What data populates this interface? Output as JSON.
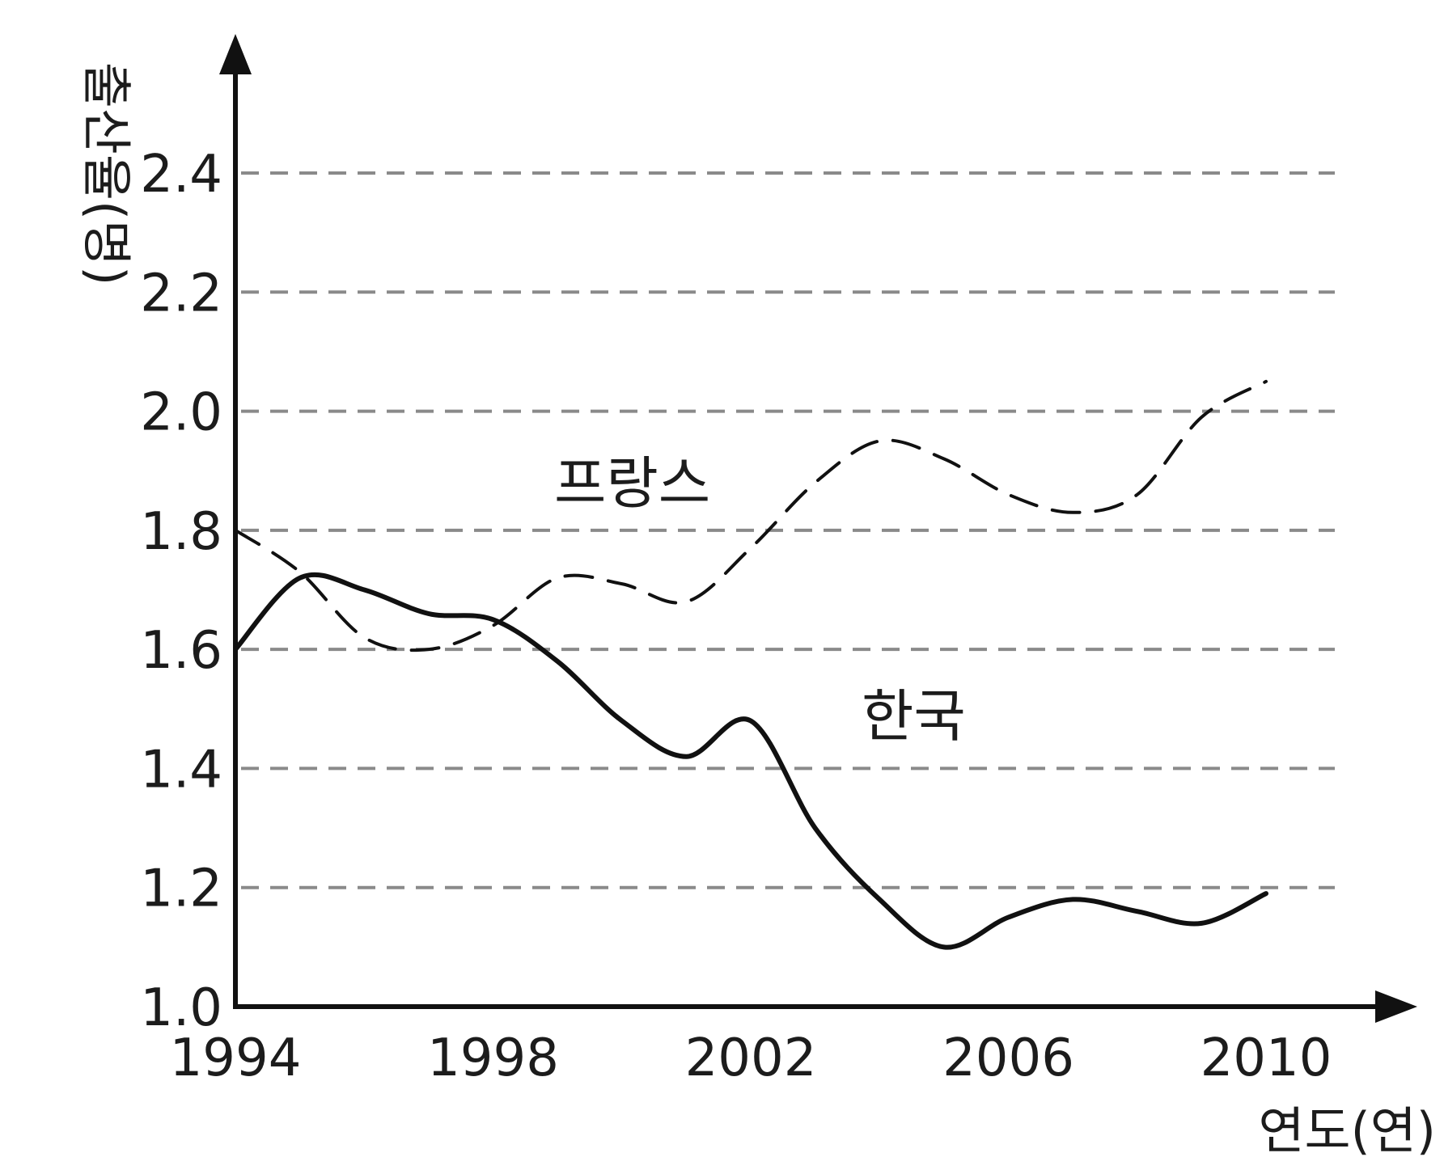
{
  "chart_data": {
    "type": "line",
    "xlabel": "연도(연)",
    "ylabel": "출산율(명)",
    "ylim": [
      1.0,
      2.5
    ],
    "xlim": [
      1994,
      2011
    ],
    "x_ticks": [
      "1994",
      "1998",
      "2002",
      "2006",
      "2010"
    ],
    "y_ticks": [
      "1.0",
      "1.2",
      "1.4",
      "1.6",
      "1.8",
      "2.0",
      "2.2",
      "2.4"
    ],
    "grid": "horizontal dashed",
    "series": [
      {
        "name": "프랑스",
        "style": "dashed",
        "x": [
          1994,
          1995,
          1996,
          1997,
          1998,
          1999,
          2000,
          2001,
          2002,
          2003,
          2004,
          2005,
          2006,
          2007,
          2008,
          2009,
          2010
        ],
        "y": [
          1.8,
          1.73,
          1.62,
          1.6,
          1.64,
          1.72,
          1.71,
          1.68,
          1.77,
          1.88,
          1.95,
          1.92,
          1.86,
          1.83,
          1.86,
          1.99,
          2.05
        ]
      },
      {
        "name": "한국",
        "style": "solid",
        "x": [
          1994,
          1995,
          1996,
          1997,
          1998,
          1999,
          2000,
          2001,
          2002,
          2003,
          2004,
          2005,
          2006,
          2007,
          2008,
          2009,
          2010
        ],
        "y": [
          1.6,
          1.72,
          1.7,
          1.66,
          1.65,
          1.58,
          1.48,
          1.42,
          1.48,
          1.3,
          1.18,
          1.1,
          1.15,
          1.18,
          1.16,
          1.14,
          1.19
        ]
      }
    ]
  }
}
